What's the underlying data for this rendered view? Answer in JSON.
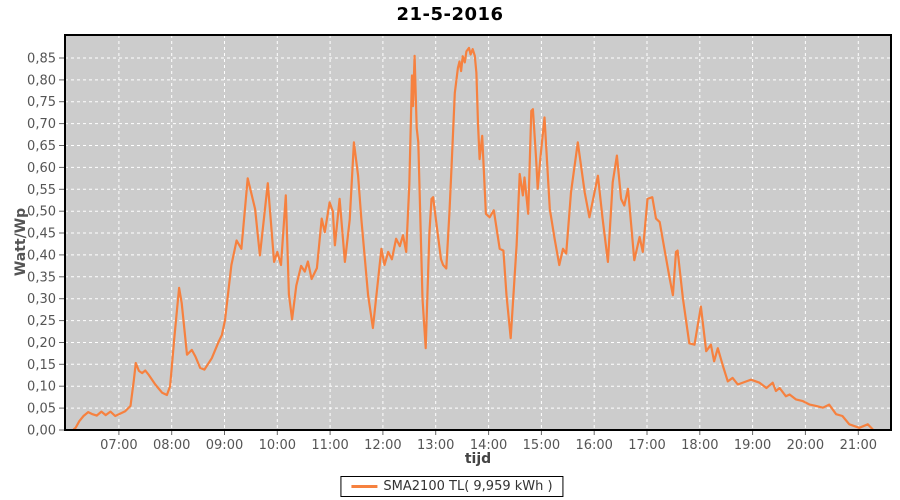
{
  "title": "21-5-2016",
  "colors": {
    "page_bg": "#ffffff",
    "plot_bg": "#cccccc",
    "grid": "#ffffff",
    "plot_border": "#000000",
    "series_orange": "#f6813f",
    "tick_text": "#555555",
    "title_text": "#000000"
  },
  "y_axis": {
    "label": "Watt/Wp",
    "tick_values": [
      0.0,
      0.05,
      0.1,
      0.15,
      0.2,
      0.25,
      0.3,
      0.35,
      0.4,
      0.45,
      0.5,
      0.55,
      0.6,
      0.65,
      0.7,
      0.75,
      0.8,
      0.85
    ],
    "tick_labels": [
      "0,00",
      "0,05",
      "0,10",
      "0,15",
      "0,20",
      "0,25",
      "0,30",
      "0,35",
      "0,40",
      "0,45",
      "0,50",
      "0,55",
      "0,60",
      "0,65",
      "0,70",
      "0,75",
      "0,80",
      "0,85"
    ]
  },
  "x_axis": {
    "label": "tijd",
    "tick_values": [
      7,
      8,
      9,
      10,
      11,
      12,
      13,
      14,
      15,
      16,
      17,
      18,
      19,
      20,
      21
    ],
    "tick_labels": [
      "07:00",
      "08:00",
      "09:00",
      "10:00",
      "11:00",
      "12:00",
      "13:00",
      "14:00",
      "15:00",
      "16:00",
      "17:00",
      "18:00",
      "19:00",
      "20:00",
      "21:00"
    ]
  },
  "legend": {
    "label": "SMA2100 TL( 9,959 kWh )"
  },
  "chart_data": {
    "type": "line",
    "title": "21-5-2016",
    "xlabel": "tijd",
    "ylabel": "Watt/Wp",
    "x_unit": "hour_of_day",
    "xlim": [
      5.98,
      21.62
    ],
    "ylim": [
      0,
      0.9025
    ],
    "grid": true,
    "grid_style": "white-dashed",
    "legend_position": "bottom-center",
    "series": [
      {
        "name": "SMA2100 TL( 9,959 kWh )",
        "color": "#f6813f",
        "points": [
          [
            6.15,
            0.002
          ],
          [
            6.18,
            0.005
          ],
          [
            6.25,
            0.02
          ],
          [
            6.33,
            0.032
          ],
          [
            6.42,
            0.041
          ],
          [
            6.5,
            0.036
          ],
          [
            6.58,
            0.033
          ],
          [
            6.67,
            0.042
          ],
          [
            6.75,
            0.034
          ],
          [
            6.84,
            0.042
          ],
          [
            6.93,
            0.032
          ],
          [
            7.0,
            0.036
          ],
          [
            7.12,
            0.043
          ],
          [
            7.22,
            0.055
          ],
          [
            7.28,
            0.111
          ],
          [
            7.32,
            0.153
          ],
          [
            7.38,
            0.135
          ],
          [
            7.44,
            0.13
          ],
          [
            7.5,
            0.136
          ],
          [
            7.56,
            0.127
          ],
          [
            7.69,
            0.104
          ],
          [
            7.82,
            0.085
          ],
          [
            7.91,
            0.08
          ],
          [
            7.97,
            0.1
          ],
          [
            8.05,
            0.21
          ],
          [
            8.14,
            0.325
          ],
          [
            8.19,
            0.29
          ],
          [
            8.29,
            0.172
          ],
          [
            8.38,
            0.183
          ],
          [
            8.45,
            0.168
          ],
          [
            8.54,
            0.142
          ],
          [
            8.62,
            0.138
          ],
          [
            8.76,
            0.164
          ],
          [
            8.89,
            0.202
          ],
          [
            8.95,
            0.217
          ],
          [
            9.01,
            0.251
          ],
          [
            9.13,
            0.377
          ],
          [
            9.23,
            0.433
          ],
          [
            9.32,
            0.414
          ],
          [
            9.44,
            0.575
          ],
          [
            9.58,
            0.505
          ],
          [
            9.67,
            0.399
          ],
          [
            9.82,
            0.564
          ],
          [
            9.94,
            0.384
          ],
          [
            10.0,
            0.407
          ],
          [
            10.07,
            0.377
          ],
          [
            10.16,
            0.536
          ],
          [
            10.22,
            0.31
          ],
          [
            10.28,
            0.253
          ],
          [
            10.36,
            0.33
          ],
          [
            10.45,
            0.375
          ],
          [
            10.52,
            0.362
          ],
          [
            10.58,
            0.385
          ],
          [
            10.65,
            0.345
          ],
          [
            10.75,
            0.37
          ],
          [
            10.84,
            0.483
          ],
          [
            10.9,
            0.452
          ],
          [
            10.99,
            0.52
          ],
          [
            11.05,
            0.5
          ],
          [
            11.09,
            0.422
          ],
          [
            11.18,
            0.528
          ],
          [
            11.28,
            0.384
          ],
          [
            11.37,
            0.48
          ],
          [
            11.45,
            0.657
          ],
          [
            11.53,
            0.581
          ],
          [
            11.59,
            0.483
          ],
          [
            11.72,
            0.308
          ],
          [
            11.81,
            0.233
          ],
          [
            11.91,
            0.346
          ],
          [
            11.97,
            0.414
          ],
          [
            12.03,
            0.377
          ],
          [
            12.1,
            0.407
          ],
          [
            12.17,
            0.39
          ],
          [
            12.25,
            0.437
          ],
          [
            12.32,
            0.42
          ],
          [
            12.38,
            0.445
          ],
          [
            12.44,
            0.407
          ],
          [
            12.5,
            0.56
          ],
          [
            12.55,
            0.81
          ],
          [
            12.57,
            0.74
          ],
          [
            12.6,
            0.855
          ],
          [
            12.64,
            0.69
          ],
          [
            12.67,
            0.657
          ],
          [
            12.75,
            0.3
          ],
          [
            12.81,
            0.187
          ],
          [
            12.88,
            0.45
          ],
          [
            12.92,
            0.528
          ],
          [
            12.95,
            0.532
          ],
          [
            13.04,
            0.445
          ],
          [
            13.1,
            0.39
          ],
          [
            13.14,
            0.377
          ],
          [
            13.2,
            0.369
          ],
          [
            13.26,
            0.5
          ],
          [
            13.3,
            0.604
          ],
          [
            13.36,
            0.77
          ],
          [
            13.42,
            0.827
          ],
          [
            13.45,
            0.842
          ],
          [
            13.48,
            0.82
          ],
          [
            13.51,
            0.854
          ],
          [
            13.55,
            0.84
          ],
          [
            13.58,
            0.865
          ],
          [
            13.63,
            0.873
          ],
          [
            13.66,
            0.858
          ],
          [
            13.7,
            0.87
          ],
          [
            13.74,
            0.855
          ],
          [
            13.77,
            0.816
          ],
          [
            13.8,
            0.7
          ],
          [
            13.83,
            0.619
          ],
          [
            13.88,
            0.672
          ],
          [
            13.95,
            0.494
          ],
          [
            14.02,
            0.486
          ],
          [
            14.1,
            0.502
          ],
          [
            14.21,
            0.414
          ],
          [
            14.28,
            0.41
          ],
          [
            14.34,
            0.308
          ],
          [
            14.42,
            0.21
          ],
          [
            14.53,
            0.422
          ],
          [
            14.59,
            0.585
          ],
          [
            14.65,
            0.536
          ],
          [
            14.68,
            0.577
          ],
          [
            14.75,
            0.494
          ],
          [
            14.81,
            0.729
          ],
          [
            14.84,
            0.733
          ],
          [
            14.9,
            0.62
          ],
          [
            14.93,
            0.551
          ],
          [
            14.98,
            0.62
          ],
          [
            15.06,
            0.714
          ],
          [
            15.16,
            0.505
          ],
          [
            15.25,
            0.437
          ],
          [
            15.34,
            0.377
          ],
          [
            15.41,
            0.414
          ],
          [
            15.47,
            0.403
          ],
          [
            15.56,
            0.543
          ],
          [
            15.69,
            0.657
          ],
          [
            15.82,
            0.543
          ],
          [
            15.91,
            0.486
          ],
          [
            16.07,
            0.581
          ],
          [
            16.16,
            0.483
          ],
          [
            16.26,
            0.384
          ],
          [
            16.35,
            0.566
          ],
          [
            16.43,
            0.627
          ],
          [
            16.51,
            0.528
          ],
          [
            16.57,
            0.513
          ],
          [
            16.64,
            0.551
          ],
          [
            16.76,
            0.388
          ],
          [
            16.86,
            0.441
          ],
          [
            16.92,
            0.407
          ],
          [
            17.01,
            0.528
          ],
          [
            17.1,
            0.532
          ],
          [
            17.17,
            0.483
          ],
          [
            17.24,
            0.475
          ],
          [
            17.33,
            0.414
          ],
          [
            17.43,
            0.346
          ],
          [
            17.49,
            0.308
          ],
          [
            17.55,
            0.407
          ],
          [
            17.58,
            0.41
          ],
          [
            17.68,
            0.301
          ],
          [
            17.8,
            0.198
          ],
          [
            17.9,
            0.195
          ],
          [
            18.02,
            0.282
          ],
          [
            18.12,
            0.18
          ],
          [
            18.21,
            0.195
          ],
          [
            18.27,
            0.157
          ],
          [
            18.34,
            0.187
          ],
          [
            18.44,
            0.145
          ],
          [
            18.53,
            0.111
          ],
          [
            18.62,
            0.119
          ],
          [
            18.72,
            0.104
          ],
          [
            18.88,
            0.111
          ],
          [
            18.97,
            0.115
          ],
          [
            19.13,
            0.108
          ],
          [
            19.26,
            0.096
          ],
          [
            19.38,
            0.108
          ],
          [
            19.44,
            0.089
          ],
          [
            19.51,
            0.096
          ],
          [
            19.63,
            0.077
          ],
          [
            19.7,
            0.081
          ],
          [
            19.82,
            0.07
          ],
          [
            19.95,
            0.066
          ],
          [
            20.08,
            0.058
          ],
          [
            20.2,
            0.055
          ],
          [
            20.33,
            0.051
          ],
          [
            20.45,
            0.058
          ],
          [
            20.58,
            0.036
          ],
          [
            20.7,
            0.032
          ],
          [
            20.83,
            0.013
          ],
          [
            21.02,
            0.005
          ],
          [
            21.18,
            0.013
          ],
          [
            21.27,
            0.002
          ]
        ]
      }
    ]
  }
}
